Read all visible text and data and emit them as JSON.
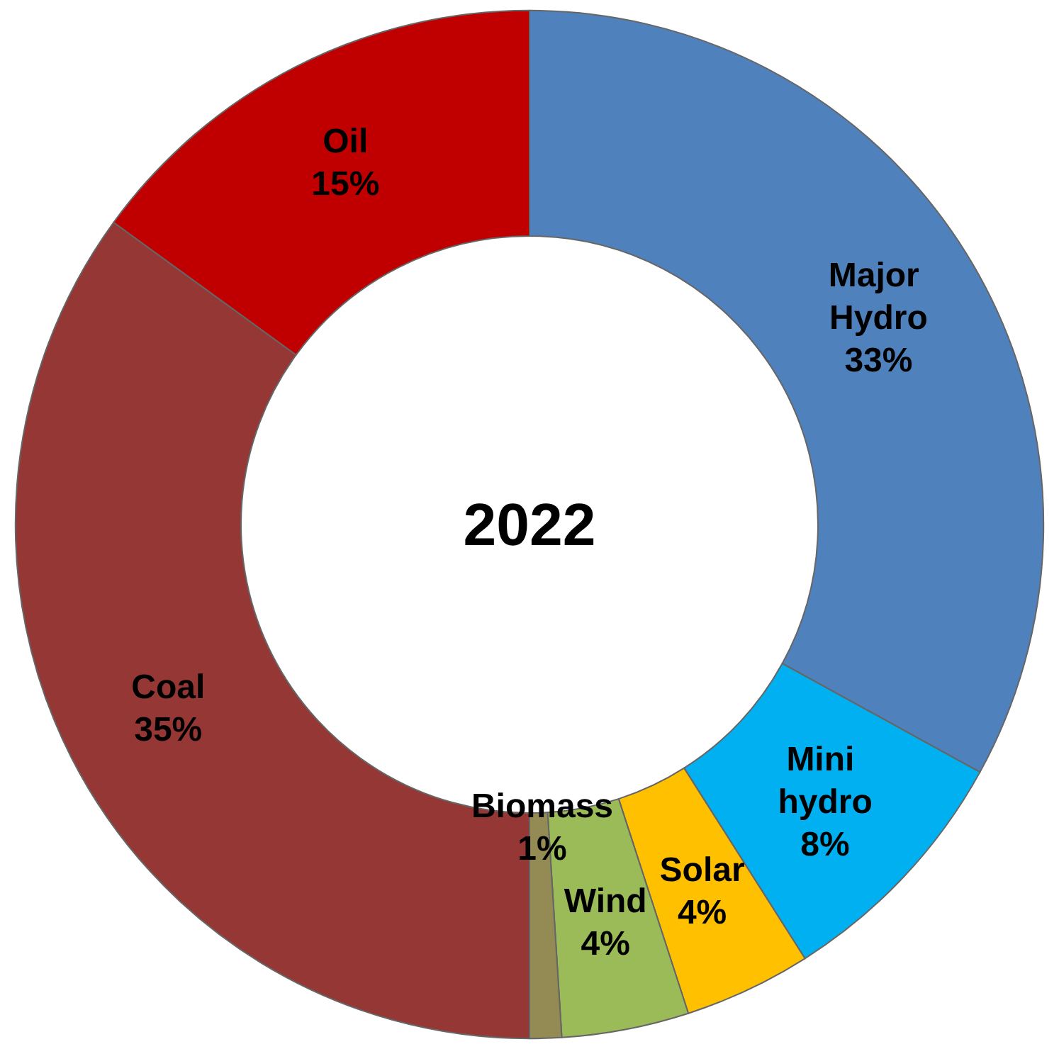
{
  "chart_data": {
    "type": "donut",
    "title": "2022",
    "categories": [
      "Major Hydro",
      "Mini hydro",
      "Solar",
      "Wind",
      "Biomass",
      "Coal",
      "Oil"
    ],
    "values": [
      33,
      8,
      4,
      4,
      1,
      35,
      15
    ],
    "value_labels": [
      "33%",
      "8%",
      "4%",
      "4%",
      "1%",
      "35%",
      "15%"
    ],
    "colors": [
      "#4f81bd",
      "#00b0f0",
      "#ffc000",
      "#9bbb59",
      "#948a54",
      "#953735",
      "#c00000"
    ],
    "legend": false
  }
}
